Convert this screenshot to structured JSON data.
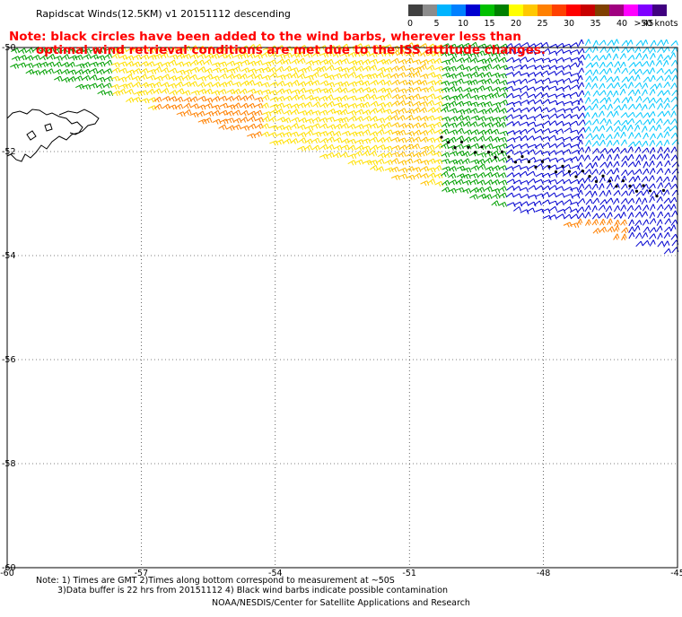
{
  "title": "Rapidscat Winds(12.5KM) v1 20151112 descending",
  "note_lines": [
    "Note: black circles have been added to the wind barbs, wherever less than",
    "optimal wind retrieval conditions are met due to the ISS attitude changes."
  ],
  "legend": {
    "colors": [
      "#404040",
      "#8c8c8c",
      "#00b4ff",
      "#0080ff",
      "#0000d0",
      "#00c000",
      "#008000",
      "#ffff00",
      "#ffc800",
      "#ff8000",
      "#ff4000",
      "#ff0000",
      "#c80000",
      "#804000",
      "#a00080",
      "#ff00ff",
      "#8000ff",
      "#400080"
    ],
    "labels": [
      "0",
      "5",
      "10",
      "15",
      "20",
      "25",
      "30",
      "35",
      "40",
      "45",
      ">50 knots"
    ]
  },
  "axes": {
    "lat_labels": [
      "-50",
      "-52",
      "-54",
      "-56",
      "-58",
      "-60"
    ],
    "lon_labels": [
      "-60",
      "-57",
      "-54",
      "-51",
      "-48",
      "-45"
    ]
  },
  "footnote_lines": [
    "Note: 1) Times are GMT 2)Times along bottom correspond to measurement at ~50S",
    "3)Data buffer is 22 hrs from 20151112 4) Black wind barbs indicate possible contamination"
  ],
  "credit": "NOAA/NESDIS/Center for Satellite Applications and Research",
  "map_data": {
    "lat_range": [
      -60,
      -50
    ],
    "lon_range": [
      -60,
      -45
    ],
    "colors": {
      "land_outline": "#000000",
      "gridline": "#000000",
      "blue": "#0000d0",
      "cyan": "#00c8ff",
      "green": "#00a000",
      "yellow": "#ffe000",
      "gold": "#ffc000",
      "orange": "#ff8000",
      "flag_circle": "#000000"
    }
  }
}
